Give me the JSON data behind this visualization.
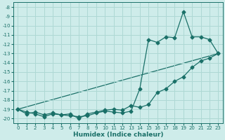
{
  "background_color": "#ceecea",
  "grid_color": "#aed8d4",
  "line_color": "#1a7068",
  "xlabel": "Humidex (Indice chaleur)",
  "xlim": [
    -0.5,
    23.5
  ],
  "ylim": [
    -20.5,
    -7.5
  ],
  "yticks": [
    -20,
    -19,
    -18,
    -17,
    -16,
    -15,
    -14,
    -13,
    -12,
    -11,
    -10,
    -9,
    -8
  ],
  "xticks": [
    0,
    1,
    2,
    3,
    4,
    5,
    6,
    7,
    8,
    9,
    10,
    11,
    12,
    13,
    14,
    15,
    16,
    17,
    18,
    19,
    20,
    21,
    22,
    23
  ],
  "series1_x": [
    0,
    1,
    2,
    3,
    4,
    5,
    6,
    7,
    8,
    9,
    10,
    11,
    12,
    13,
    14,
    15,
    16,
    17,
    18,
    19,
    20,
    21,
    22,
    23
  ],
  "series1_y": [
    -19.0,
    -19.5,
    -19.3,
    -19.6,
    -19.4,
    -19.6,
    -19.5,
    -20.0,
    -19.5,
    -19.3,
    -19.1,
    -19.0,
    -19.1,
    -18.6,
    -18.8,
    -18.5,
    -17.2,
    -16.8,
    -16.0,
    -15.5,
    -14.5,
    -13.8,
    -13.5,
    -13.0
  ],
  "series2_x": [
    0,
    1,
    2,
    3,
    4,
    5,
    6,
    7,
    8,
    9,
    10,
    11,
    12,
    13,
    14,
    15,
    16,
    17,
    18,
    19,
    20,
    21,
    22,
    23
  ],
  "series2_y": [
    -19.0,
    -19.3,
    -19.5,
    -19.8,
    -19.5,
    -19.6,
    -19.7,
    -19.8,
    -19.7,
    -19.4,
    -19.2,
    -19.3,
    -19.4,
    -19.2,
    -16.8,
    -11.5,
    -11.8,
    -11.2,
    -11.3,
    -8.5,
    -11.2,
    -11.2,
    -11.5,
    -13.0
  ],
  "series3_x": [
    0,
    23
  ],
  "series3_y": [
    -19.0,
    -13.0
  ],
  "marker_size": 2.5,
  "line_width": 0.9,
  "tick_fontsize": 5.0,
  "xlabel_fontsize": 6.5
}
